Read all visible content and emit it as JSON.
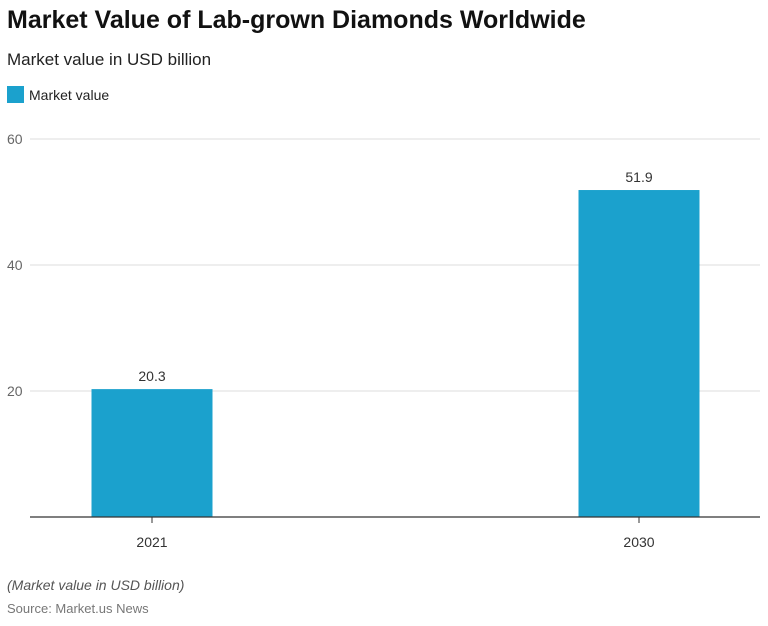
{
  "title": "Market Value of Lab-grown Diamonds Worldwide",
  "subtitle": "Market value in USD billion",
  "note": "(Market value in USD billion)",
  "source": "Source: Market.us News",
  "chart_data": {
    "type": "bar",
    "categories": [
      "2021",
      "2030"
    ],
    "series": [
      {
        "name": "Market value",
        "values": [
          20.3,
          51.9
        ],
        "color": "#1ba1cd"
      }
    ],
    "data_labels": [
      "20.3",
      "51.9"
    ],
    "yticks": [
      "20",
      "40",
      "60"
    ],
    "ylim": [
      0,
      60
    ],
    "grid": true,
    "legend": "top-left"
  }
}
